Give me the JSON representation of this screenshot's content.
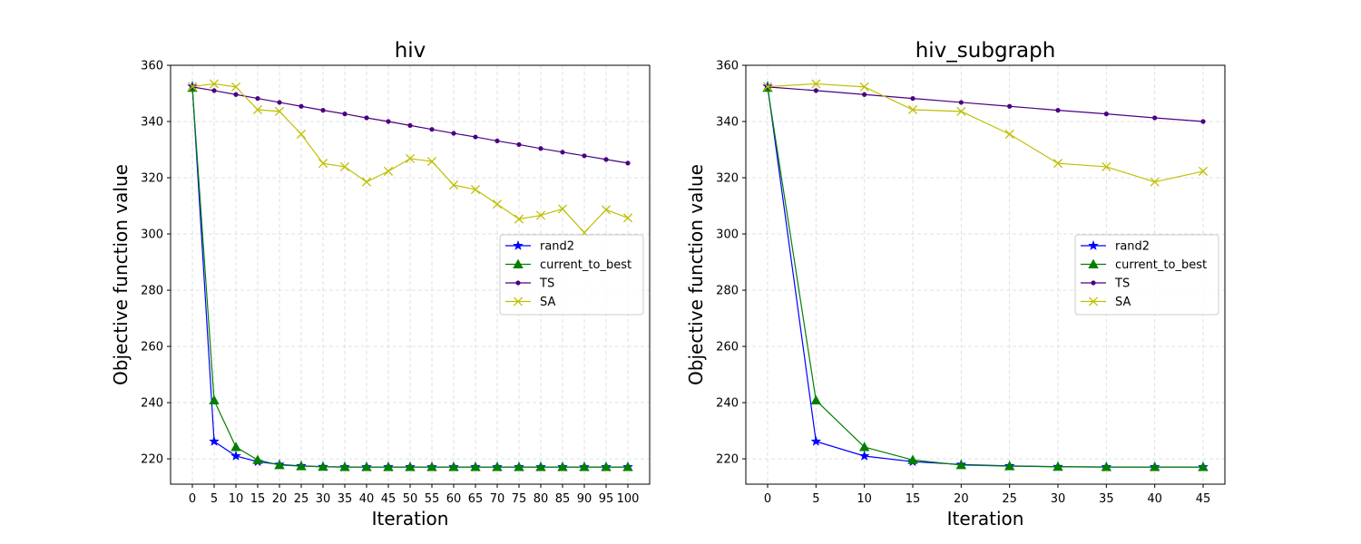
{
  "chart_data": [
    {
      "type": "line",
      "title": "hiv",
      "xlabel": "Iteration",
      "ylabel": "Objective function value",
      "x": [
        0,
        5,
        10,
        15,
        20,
        25,
        30,
        35,
        40,
        45,
        50,
        55,
        60,
        65,
        70,
        75,
        80,
        85,
        90,
        95,
        100
      ],
      "xticks": [
        0,
        5,
        10,
        15,
        20,
        25,
        30,
        35,
        40,
        45,
        50,
        55,
        60,
        65,
        70,
        75,
        80,
        85,
        90,
        95,
        100
      ],
      "xlim": [
        -5,
        105
      ],
      "ylim": [
        211,
        360
      ],
      "yticks": [
        220,
        240,
        260,
        280,
        300,
        320,
        340,
        360
      ],
      "grid": true,
      "legend_position": "center-right",
      "series": [
        {
          "name": "rand2",
          "color": "#0000ff",
          "marker": "star",
          "values": [
            352.5,
            226.2,
            221.0,
            219.0,
            218.0,
            217.5,
            217.2,
            217.1,
            217.1,
            217.1,
            217.1,
            217.1,
            217.1,
            217.1,
            217.1,
            217.1,
            217.1,
            217.1,
            217.1,
            217.1,
            217.1
          ]
        },
        {
          "name": "current_to_best",
          "color": "#008000",
          "marker": "triangle",
          "values": [
            352.0,
            240.8,
            224.2,
            219.6,
            217.8,
            217.4,
            217.2,
            217.1,
            217.1,
            217.1,
            217.1,
            217.1,
            217.1,
            217.1,
            217.1,
            217.1,
            217.1,
            217.1,
            217.1,
            217.1,
            217.1
          ]
        },
        {
          "name": "TS",
          "color": "#4b0082",
          "marker": "dot",
          "values": [
            352.3,
            351.0,
            349.6,
            348.2,
            346.8,
            345.4,
            344.0,
            342.7,
            341.3,
            340.0,
            338.6,
            337.2,
            335.8,
            334.5,
            333.1,
            331.8,
            330.4,
            329.1,
            327.8,
            326.5,
            325.2
          ]
        },
        {
          "name": "SA",
          "color": "#bfbf00",
          "marker": "x",
          "values": [
            352.4,
            353.4,
            352.3,
            344.2,
            343.6,
            335.5,
            325.1,
            323.9,
            318.5,
            322.3,
            326.8,
            325.8,
            317.4,
            315.8,
            310.6,
            305.3,
            306.6,
            308.9,
            300.5,
            308.6,
            305.7
          ]
        }
      ]
    },
    {
      "type": "line",
      "title": "hiv_subgraph",
      "xlabel": "Iteration",
      "ylabel": "Objective function value",
      "x": [
        0,
        5,
        10,
        15,
        20,
        25,
        30,
        35,
        40,
        45
      ],
      "xticks": [
        0,
        5,
        10,
        15,
        20,
        25,
        30,
        35,
        40,
        45
      ],
      "xlim": [
        -2.25,
        47.25
      ],
      "ylim": [
        211,
        360
      ],
      "yticks": [
        220,
        240,
        260,
        280,
        300,
        320,
        340,
        360
      ],
      "grid": true,
      "legend_position": "center-right",
      "series": [
        {
          "name": "rand2",
          "color": "#0000ff",
          "marker": "star",
          "values": [
            352.5,
            226.2,
            221.0,
            219.0,
            218.0,
            217.5,
            217.2,
            217.1,
            217.1,
            217.1
          ]
        },
        {
          "name": "current_to_best",
          "color": "#008000",
          "marker": "triangle",
          "values": [
            352.0,
            240.8,
            224.2,
            219.6,
            217.8,
            217.4,
            217.2,
            217.1,
            217.1,
            217.1
          ]
        },
        {
          "name": "TS",
          "color": "#4b0082",
          "marker": "dot",
          "values": [
            352.3,
            351.0,
            349.6,
            348.2,
            346.8,
            345.4,
            344.0,
            342.7,
            341.3,
            340.0
          ]
        },
        {
          "name": "SA",
          "color": "#bfbf00",
          "marker": "x",
          "values": [
            352.4,
            353.4,
            352.3,
            344.2,
            343.6,
            335.5,
            325.1,
            323.9,
            318.5,
            322.3
          ]
        }
      ]
    }
  ]
}
